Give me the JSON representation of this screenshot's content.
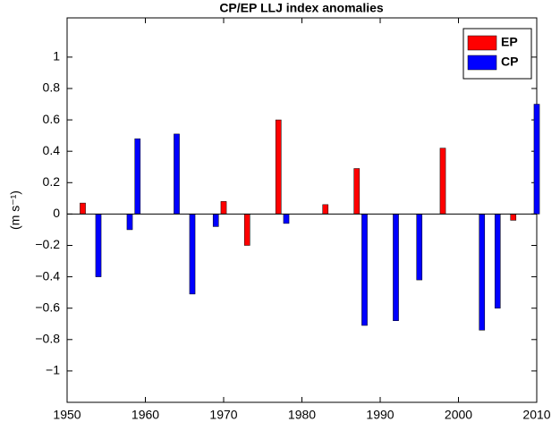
{
  "chart_data": {
    "type": "bar",
    "title": "CP/EP LLJ index anomalies",
    "y_label": "(m s⁻¹)",
    "series": [
      {
        "name": "EP",
        "color": "#ff0000",
        "x": [
          1952,
          1970,
          1973,
          1977,
          1983,
          1987,
          1998,
          2007
        ],
        "values": [
          0.07,
          0.08,
          -0.2,
          0.6,
          0.06,
          0.29,
          0.42,
          -0.04
        ]
      },
      {
        "name": "CP",
        "color": "#0000ff",
        "x": [
          1954,
          1958,
          1959,
          1964,
          1966,
          1969,
          1978,
          1988,
          1992,
          1995,
          2003,
          2005,
          2010
        ],
        "values": [
          -0.4,
          -0.1,
          0.48,
          0.51,
          -0.51,
          -0.08,
          -0.06,
          -0.71,
          -0.68,
          -0.42,
          -0.74,
          -0.6,
          0.7
        ]
      }
    ],
    "xlim": [
      1950,
      2010
    ],
    "xticks": [
      1950,
      1960,
      1970,
      1980,
      1990,
      2000,
      2010
    ],
    "ylim": [
      -1.2,
      1.25
    ],
    "yticks": [
      {
        "value": -1,
        "label": "−1"
      },
      {
        "value": -0.8,
        "label": "−0.8"
      },
      {
        "value": -0.6,
        "label": "−0.6"
      },
      {
        "value": -0.4,
        "label": "−0.4"
      },
      {
        "value": -0.2,
        "label": "−0.2"
      },
      0,
      0.2,
      0.4,
      0.6,
      0.8,
      1
    ],
    "grid": false,
    "legend": "upper right"
  }
}
